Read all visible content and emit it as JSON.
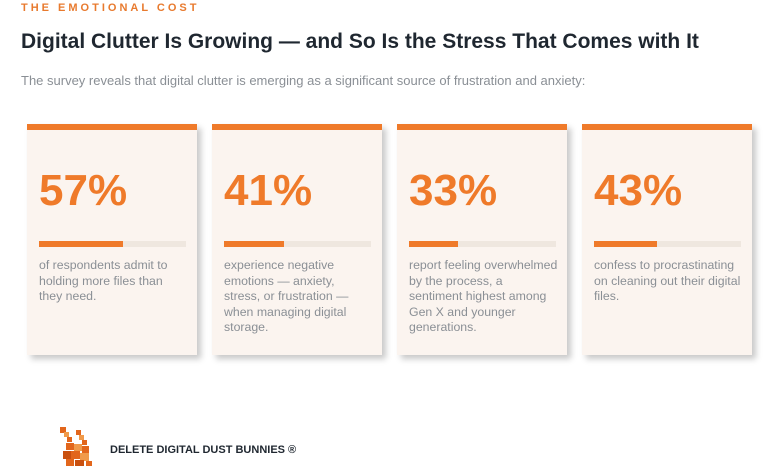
{
  "eyebrow": "THE EMOTIONAL COST",
  "title": "Digital Clutter Is Growing — and So Is the Stress That Comes with It",
  "subtitle": "The survey reveals that digital clutter is emerging as a significant source of frustration and anxiety:",
  "accent": "#ef7a2a",
  "cards": [
    {
      "value": "57%",
      "fraction": 0.57,
      "text": "of respondents admit to holding more files than they need."
    },
    {
      "value": "41%",
      "fraction": 0.41,
      "text": "experience negative emotions — anxiety, stress, or frustration — when managing digital storage."
    },
    {
      "value": "33%",
      "fraction": 0.33,
      "text": "report feeling overwhelmed by the process, a sentiment highest among Gen X and younger generations."
    },
    {
      "value": "43%",
      "fraction": 0.43,
      "text": "confess to procrastinating on cleaning out their digital files."
    }
  ],
  "brand": "DELETE DIGITAL DUST BUNNIES ®"
}
